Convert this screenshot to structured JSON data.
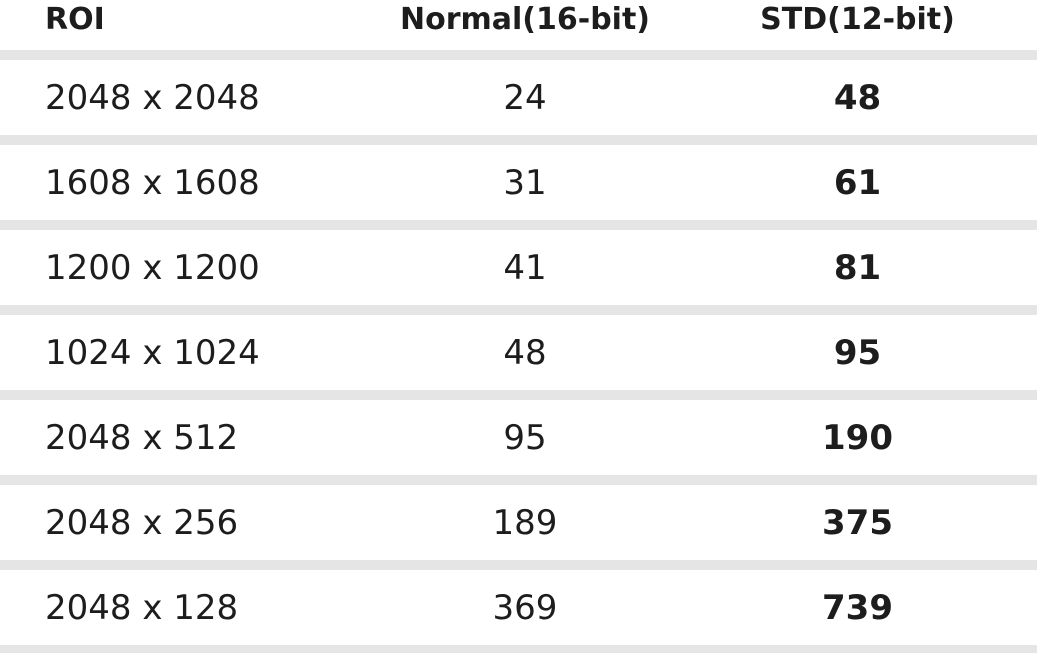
{
  "colors": {
    "divider": "#e5e5e5",
    "text": "#1d1d1d",
    "background": "#ffffff"
  },
  "table": {
    "columns": [
      {
        "label": "ROI"
      },
      {
        "label": "Normal(16-bit)"
      },
      {
        "label": "STD(12-bit)"
      }
    ],
    "rows": [
      {
        "roi": "2048 x 2048",
        "normal": "24",
        "std": "48"
      },
      {
        "roi": "1608 x 1608",
        "normal": "31",
        "std": "61"
      },
      {
        "roi": "1200 x 1200",
        "normal": "41",
        "std": "81"
      },
      {
        "roi": "1024 x 1024",
        "normal": "48",
        "std": "95"
      },
      {
        "roi": "2048 x 512",
        "normal": "95",
        "std": "190"
      },
      {
        "roi": "2048 x 256",
        "normal": "189",
        "std": "375"
      },
      {
        "roi": "2048 x 128",
        "normal": "369",
        "std": "739"
      }
    ]
  },
  "chart_data": {
    "type": "table",
    "title": "",
    "columns": [
      "ROI",
      "Normal(16-bit)",
      "STD(12-bit)"
    ],
    "categories": [
      "2048 x 2048",
      "1608 x 1608",
      "1200 x 1200",
      "1024 x 1024",
      "2048 x 512",
      "2048 x 256",
      "2048 x 128"
    ],
    "series": [
      {
        "name": "Normal(16-bit)",
        "values": [
          24,
          31,
          41,
          48,
          95,
          189,
          369
        ]
      },
      {
        "name": "STD(12-bit)",
        "values": [
          48,
          61,
          81,
          95,
          190,
          375,
          739
        ]
      }
    ]
  }
}
